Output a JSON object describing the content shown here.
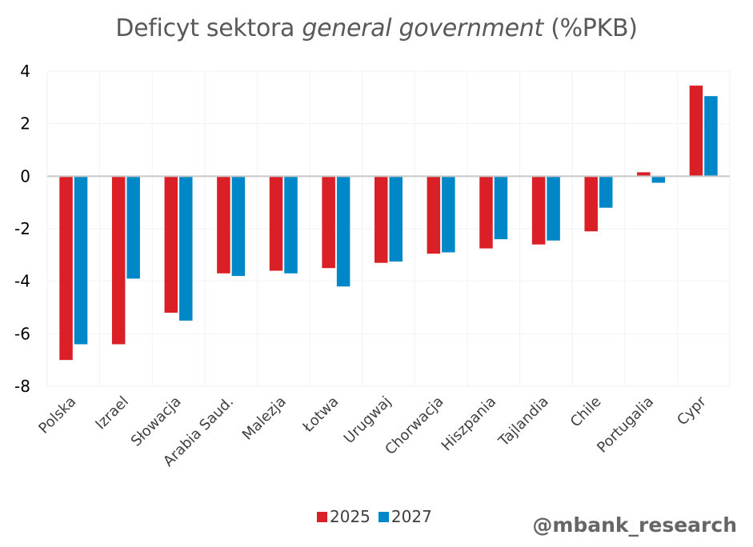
{
  "chart_data": {
    "type": "bar",
    "title_parts": [
      {
        "text": "Deficyt sektora ",
        "italic": false
      },
      {
        "text": "general government",
        "italic": true
      },
      {
        "text": " (%PKB)",
        "italic": false
      }
    ],
    "title": "Deficyt sektora general government (%PKB)",
    "xlabel": "",
    "ylabel": "",
    "ylim": [
      -8,
      4
    ],
    "yticks": [
      4,
      2,
      0,
      -2,
      -4,
      -6,
      -8
    ],
    "ytick_labels": [
      "4",
      "2",
      "0",
      "-2",
      "-4",
      "-6",
      "-8"
    ],
    "grid": true,
    "legend_position": "bottom-center",
    "categories": [
      "Polska",
      "Izrael",
      "Słowacja",
      "Arabia Saud.",
      "Malezja",
      "Łotwa",
      "Urugwaj",
      "Chorwacja",
      "Hiszpania",
      "Tajlandia",
      "Chile",
      "Portugalia",
      "Cypr"
    ],
    "series": [
      {
        "name": "2025",
        "color": "#DA1F26",
        "values": [
          -7.0,
          -6.4,
          -5.2,
          -3.7,
          -3.6,
          -3.5,
          -3.3,
          -2.95,
          -2.75,
          -2.6,
          -2.1,
          0.15,
          3.45
        ]
      },
      {
        "name": "2027",
        "color": "#0087C8",
        "values": [
          -6.4,
          -3.9,
          -5.5,
          -3.8,
          -3.7,
          -4.2,
          -3.25,
          -2.9,
          -2.4,
          -2.45,
          -1.2,
          -0.25,
          3.05
        ]
      }
    ]
  },
  "watermark": "@mbank_research",
  "colors": {
    "title": "#595959",
    "gridline": "#F2F2F2",
    "zero_line": "#C8C8C8",
    "axis_labels": "#404040"
  }
}
